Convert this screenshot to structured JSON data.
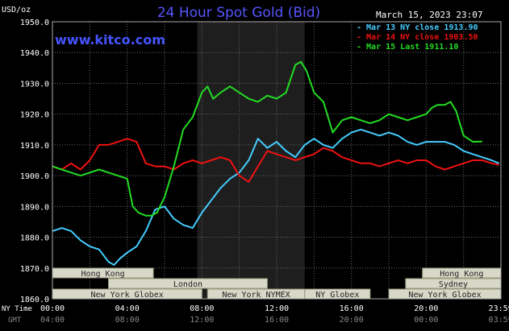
{
  "header": {
    "title": "24 Hour Spot Gold (Bid)",
    "unit": "USD/oz",
    "timestamp": "March 15, 2023 23:07",
    "site": "www.kitco.com"
  },
  "colors": {
    "background": "#000000",
    "grid": "#666666",
    "axis_text": "#ffffff",
    "title": "#5555ff",
    "site": "#4455ff",
    "highlight": "#1e1e1e",
    "session_box": "#d8d8c8",
    "session_border": "#9a9a80",
    "session_text": "#222222",
    "gmt_text": "#8a8a8a"
  },
  "chart_data": {
    "type": "line",
    "x_unit": "hours (NY time)",
    "xlim": [
      0,
      24
    ],
    "ylim": [
      1860,
      1950
    ],
    "yticks": [
      1860,
      1870,
      1880,
      1890,
      1900,
      1910,
      1920,
      1930,
      1940,
      1950
    ],
    "ytick_labels": [
      "1860.0",
      "1870.0",
      "1880.0",
      "1890.0",
      "1900.0",
      "1910.0",
      "1920.0",
      "1930.0",
      "1940.0",
      "1950.0"
    ],
    "xticks": [
      0,
      4,
      8,
      12,
      16,
      20,
      23.983
    ],
    "xtick_labels": [
      "00:00",
      "04:00",
      "08:00",
      "12:00",
      "16:00",
      "20:00",
      "23:59"
    ],
    "gmt_labels": [
      "04:00",
      "08:00",
      "12:00",
      "16:00",
      "20:00",
      "00:00",
      "03:59"
    ],
    "x_axis_label": "NY Time",
    "gmt_axis_label": "GMT",
    "grid": true,
    "legend_position": "top-right",
    "highlight_range": [
      7.75,
      13.5
    ],
    "series": [
      {
        "name": "Mar 13 NY close 1913.90",
        "color": "#44ccff",
        "x": [
          0,
          0.5,
          1,
          1.5,
          2,
          2.5,
          3,
          3.3,
          3.6,
          4,
          4.5,
          5,
          5.5,
          6,
          6.5,
          7,
          7.5,
          8,
          8.5,
          9,
          9.5,
          10,
          10.5,
          11,
          11.5,
          12,
          12.5,
          13,
          13.5,
          14,
          14.5,
          15,
          15.5,
          16,
          16.5,
          17,
          17.5,
          18,
          18.5,
          19,
          19.5,
          20,
          20.5,
          21,
          21.5,
          22,
          22.5,
          23,
          23.5,
          23.9
        ],
        "values": [
          1882,
          1883,
          1882,
          1879,
          1877,
          1876,
          1872,
          1871,
          1873,
          1875,
          1877,
          1882,
          1889,
          1890,
          1886,
          1884,
          1883,
          1888,
          1892,
          1896,
          1899,
          1901,
          1905,
          1912,
          1909,
          1911,
          1908,
          1906,
          1910,
          1912,
          1910,
          1909,
          1912,
          1914,
          1915,
          1914,
          1913,
          1914,
          1913,
          1911,
          1910,
          1911,
          1911,
          1911,
          1910,
          1908,
          1907,
          1906,
          1905,
          1904
        ]
      },
      {
        "name": "Mar 14 NY close 1903.50",
        "color": "#ee1111",
        "x": [
          0,
          0.5,
          1,
          1.5,
          2,
          2.5,
          3,
          3.5,
          4,
          4.5,
          5,
          5.5,
          6,
          6.5,
          7,
          7.5,
          8,
          8.5,
          9,
          9.5,
          10,
          10.5,
          11,
          11.5,
          12,
          12.5,
          13,
          13.5,
          14,
          14.5,
          15,
          15.5,
          16,
          16.5,
          17,
          17.5,
          18,
          18.5,
          19,
          19.5,
          20,
          20.5,
          21,
          21.5,
          22,
          22.5,
          23,
          23.5,
          23.9
        ],
        "values": [
          1903,
          1902,
          1904,
          1902,
          1905,
          1910,
          1910,
          1911,
          1912,
          1911,
          1904,
          1903,
          1903,
          1902,
          1904,
          1905,
          1904,
          1905,
          1906,
          1905,
          1900,
          1898,
          1903,
          1908,
          1907,
          1906,
          1905,
          1906,
          1907,
          1909,
          1908,
          1906,
          1905,
          1904,
          1904,
          1903,
          1904,
          1905,
          1904,
          1905,
          1905,
          1903,
          1902,
          1903,
          1904,
          1905,
          1905,
          1904,
          1903.5
        ]
      },
      {
        "name": "Mar 15 Last 1911.10",
        "color": "#22dd22",
        "x": [
          0,
          0.5,
          1,
          1.5,
          2,
          2.5,
          3,
          3.5,
          4,
          4.3,
          4.6,
          5,
          5.3,
          5.6,
          6,
          6.5,
          7,
          7.5,
          8,
          8.3,
          8.6,
          9,
          9.5,
          10,
          10.5,
          11,
          11.5,
          12,
          12.5,
          13,
          13.3,
          13.6,
          14,
          14.5,
          15,
          15.5,
          16,
          16.5,
          17,
          17.5,
          18,
          18.5,
          19,
          19.5,
          20,
          20.3,
          20.6,
          21,
          21.3,
          21.6,
          22,
          22.5,
          23
        ],
        "values": [
          1903,
          1902,
          1901,
          1900,
          1901,
          1902,
          1901,
          1900,
          1899,
          1890,
          1888,
          1887,
          1887,
          1888,
          1893,
          1903,
          1915,
          1919,
          1927,
          1929,
          1925,
          1927,
          1929,
          1927,
          1925,
          1924,
          1926,
          1925,
          1927,
          1936,
          1937,
          1934,
          1927,
          1924,
          1914,
          1918,
          1919,
          1918,
          1917,
          1918,
          1920,
          1919,
          1918,
          1919,
          1920,
          1922,
          1923,
          1923,
          1924,
          1921,
          1913,
          1911,
          1911.1
        ]
      }
    ],
    "sessions": [
      {
        "label": "Hong Kong",
        "row": 1,
        "start": 0,
        "end": 5.4
      },
      {
        "label": "London",
        "row": 2,
        "start": 3,
        "end": 11.5
      },
      {
        "label": "New York Globex",
        "row": 3,
        "start": 0,
        "end": 8
      },
      {
        "label": "New York NYMEX",
        "row": 3,
        "start": 8.3,
        "end": 13.5
      },
      {
        "label": "NY Globex",
        "row": 3,
        "start": 13.5,
        "end": 17
      },
      {
        "label": "Hong Kong",
        "row": 1,
        "start": 19.8,
        "end": 24
      },
      {
        "label": "Sydney",
        "row": 2,
        "start": 18.9,
        "end": 24
      },
      {
        "label": "New York Globex",
        "row": 3,
        "start": 18,
        "end": 24
      }
    ]
  }
}
